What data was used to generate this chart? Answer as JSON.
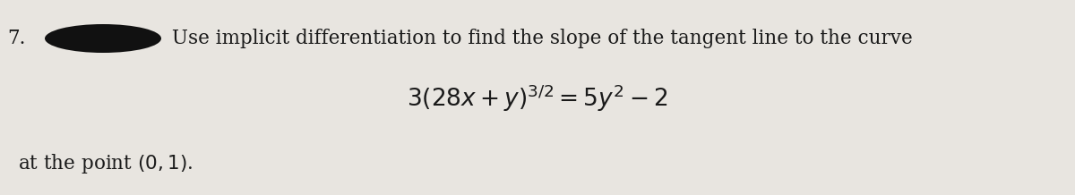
{
  "number": "7.",
  "line1_text": " Use implicit differentiation to find the slope of the tangent line to the curve",
  "equation": "$3(28x + y)^{3/2} = 5y^2 - 2$",
  "line3": "at the point $(0, 1)$.",
  "background_color": "#e8e5e0",
  "text_color": "#1a1a1a",
  "ellipse_color": "#111111",
  "fontsize_main": 15.5,
  "fontsize_eq": 19,
  "fig_width": 12.0,
  "fig_height": 2.18,
  "dpi": 100
}
